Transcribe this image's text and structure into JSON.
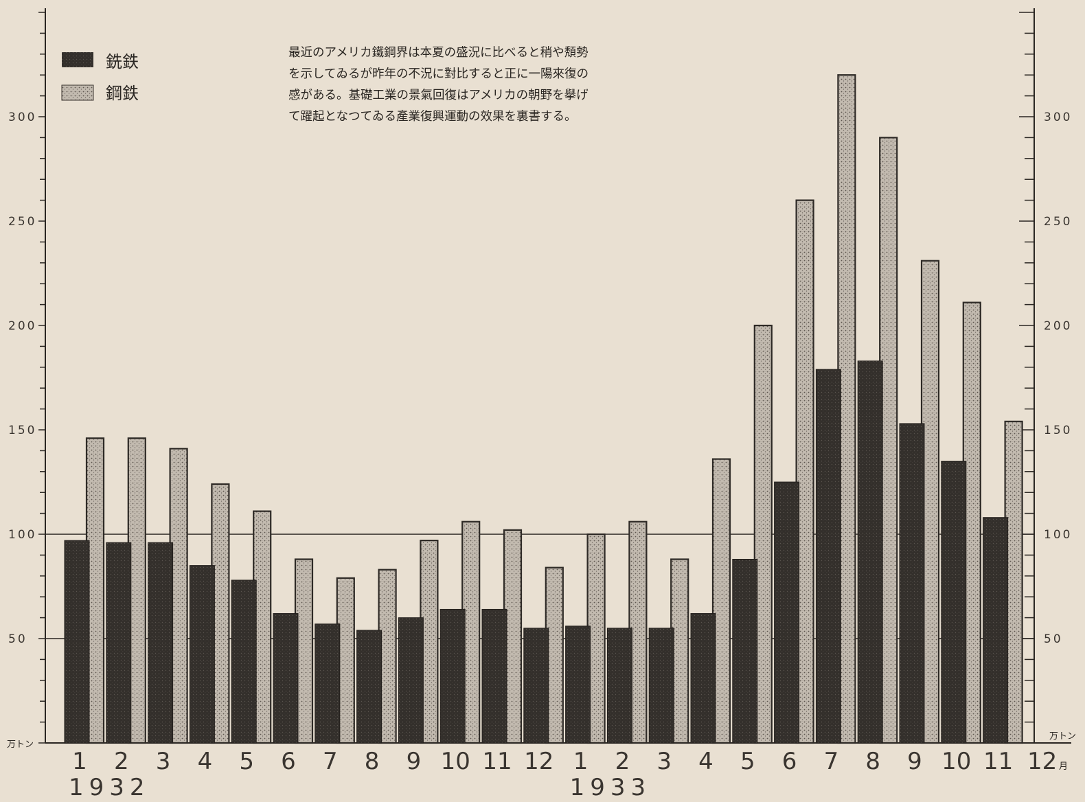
{
  "chart_data": {
    "type": "bar",
    "categories": [
      "1",
      "2",
      "3",
      "4",
      "5",
      "6",
      "7",
      "8",
      "9",
      "10",
      "11",
      "12",
      "1",
      "2",
      "3",
      "4",
      "5",
      "6",
      "7",
      "8",
      "9",
      "10",
      "11"
    ],
    "x_end_label": "12",
    "x_end_unit": "月",
    "years": [
      {
        "label": "1932",
        "start_index": 0
      },
      {
        "label": "1933",
        "start_index": 12
      }
    ],
    "series": [
      {
        "name": "銑鉄",
        "color": "#3b3632",
        "values": [
          97,
          96,
          96,
          85,
          78,
          62,
          57,
          54,
          60,
          64,
          64,
          55,
          56,
          55,
          55,
          62,
          88,
          125,
          179,
          183,
          153,
          135,
          108
        ]
      },
      {
        "name": "鋼鉄",
        "color": "#b4ab9f",
        "values": [
          146,
          146,
          141,
          124,
          111,
          88,
          79,
          83,
          97,
          106,
          102,
          84,
          100,
          106,
          88,
          136,
          200,
          260,
          320,
          290,
          231,
          211,
          154
        ]
      }
    ],
    "ylim": [
      0,
      350
    ],
    "y_ticks_left": [
      "50",
      "100",
      "150",
      "200",
      "250",
      "300"
    ],
    "y_ticks_right": [
      "50",
      "100",
      "150",
      "200",
      "250",
      "300"
    ],
    "y_unit_left": "万トン",
    "y_unit_right": "万トン",
    "reference_lines": [
      50,
      100
    ],
    "grid": false,
    "legend_position": "top-left",
    "annotation_lines": [
      "最近のアメリカ鐵鋼界は本夏の盛況に比べると稍や頽勢",
      "を示してゐるが昨年の不況に對比すると正に一陽來復の",
      "感がある。基礎工業の景氣回復はアメリカの朝野を擧げ",
      "て躍起となつてゐる產業復興運動の效果を裏書する。"
    ]
  }
}
